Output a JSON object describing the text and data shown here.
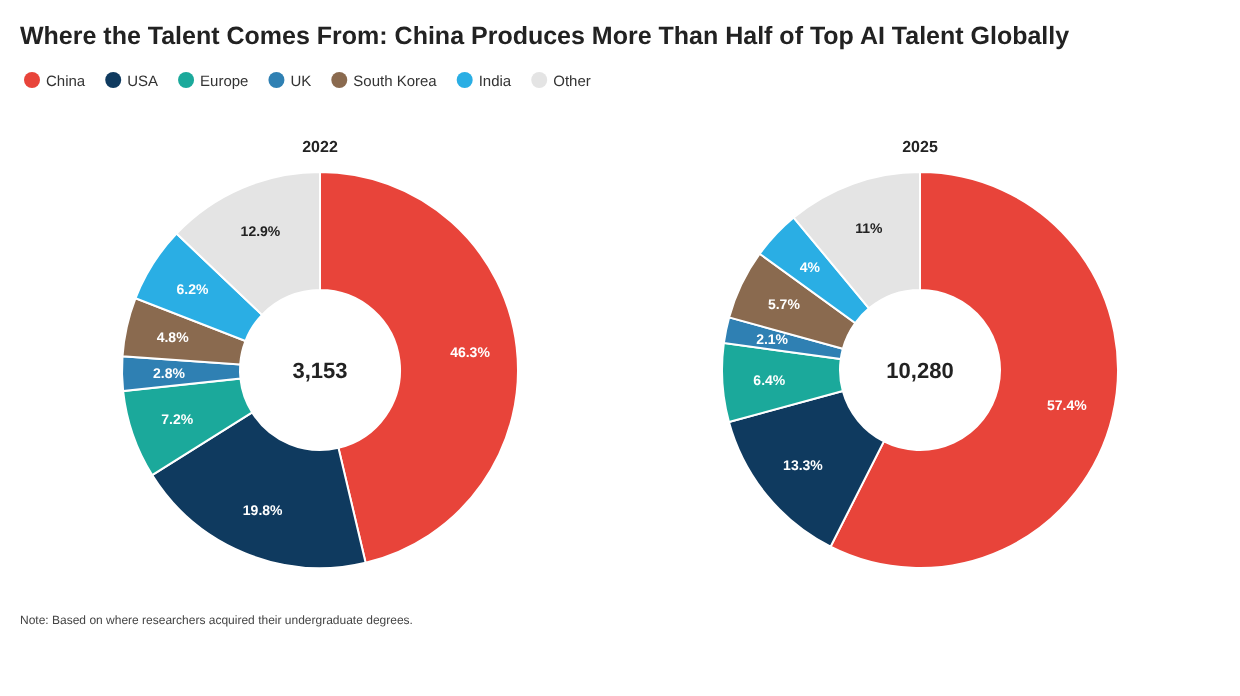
{
  "chart_data": [
    {
      "type": "donut",
      "title": "Where the Talent Comes From: China Produces More Than Half of Top AI Talent Globally",
      "subtitle": "2022",
      "categories": [
        "China",
        "USA",
        "Europe",
        "UK",
        "South Korea",
        "India",
        "Other"
      ],
      "values": [
        46.3,
        19.8,
        7.2,
        2.8,
        4.8,
        6.2,
        12.9
      ],
      "value_labels": [
        "46.3%",
        "19.8%",
        "7.2%",
        "2.8%",
        "4.8%",
        "6.2%",
        "12.9%"
      ],
      "colors": [
        "#e8443a",
        "#0f3a5f",
        "#1ba99b",
        "#2f80b3",
        "#8a6a4f",
        "#2aaee4",
        "#e4e4e4"
      ],
      "legend": "top",
      "annotations": [
        "3,153",
        "Note: Based on where researchers acquired their undergraduate degrees."
      ]
    },
    {
      "type": "donut",
      "subtitle": "2025",
      "categories": [
        null,
        null,
        null,
        null,
        null,
        null,
        null
      ],
      "values": [
        57.4,
        13.3,
        6.4,
        2.1,
        5.7,
        4,
        11
      ],
      "value_labels": [
        "57.4%",
        "13.3%",
        "6.4%",
        "2.1%",
        "5.7%",
        "4%",
        "11%"
      ],
      "colors": [
        "#e8443a",
        "#0f3a5f",
        "#1ba99b",
        "#2f80b3",
        "#8a6a4f",
        "#2aaee4",
        "#e4e4e4"
      ],
      "annotations": [
        "10,280"
      ]
    }
  ]
}
